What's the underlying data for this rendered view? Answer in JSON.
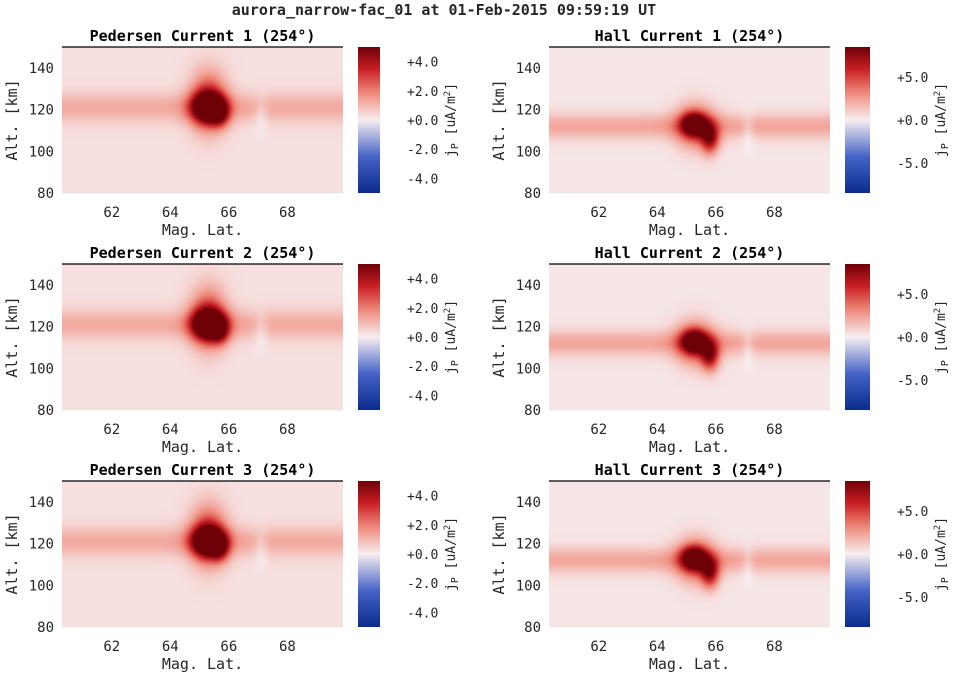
{
  "suptitle": "aurora_narrow-fac_01 at 01-Feb-2015 09:59:19 UT",
  "colors": {
    "cmap_low": "#0a2a8c",
    "cmap_mid": "#f7eef0",
    "cmap_high": "#6e0008",
    "background": "#efe3e6",
    "axis": "#262626"
  },
  "chart_data": [
    {
      "type": "heatmap",
      "title": "Pedersen Current 1 (254°)",
      "xlabel": "Mag. Lat.",
      "ylabel": "Alt. [km]",
      "xlim": [
        60.3,
        69.9
      ],
      "ylim": [
        80,
        150
      ],
      "xticks": [
        "62",
        "64",
        "66",
        "68"
      ],
      "yticks": [
        "80",
        "100",
        "120",
        "140"
      ],
      "clim": [
        -5,
        5
      ],
      "colorbar_label": "jP [uA/m²]",
      "colorbar_ticks": [
        "+4.0",
        "+2.0",
        "+0.0",
        "-2.0",
        "-4.0"
      ],
      "colorbar_values": [
        4,
        2,
        0,
        -2,
        -4
      ],
      "band": {
        "alt": 121,
        "width": 7,
        "value": 1.0
      },
      "blobs": [
        {
          "lat": 65.3,
          "alt": 124,
          "slat": 0.6,
          "salt": 14,
          "value": 3.0
        },
        {
          "lat": 65.3,
          "alt": 121,
          "slat": 0.55,
          "salt": 7,
          "value": 5.5
        },
        {
          "lat": 65.7,
          "alt": 118,
          "slat": 0.3,
          "salt": 6,
          "value": 2.5
        },
        {
          "lat": 67.1,
          "alt": 118,
          "slat": 0.22,
          "salt": 8,
          "value": -0.6
        }
      ]
    },
    {
      "type": "heatmap",
      "title": "Hall Current 1 (254°)",
      "xlabel": "Mag. Lat.",
      "ylabel": "Alt. [km]",
      "xlim": [
        60.3,
        69.9
      ],
      "ylim": [
        80,
        150
      ],
      "xticks": [
        "62",
        "64",
        "66",
        "68"
      ],
      "yticks": [
        "80",
        "100",
        "120",
        "140"
      ],
      "clim": [
        -8.5,
        8.5
      ],
      "colorbar_label": "jP [uA/m²]",
      "colorbar_ticks": [
        "+5.0",
        "+0.0",
        "-5.0"
      ],
      "colorbar_values": [
        5,
        0,
        -5
      ],
      "band": {
        "alt": 112,
        "width": 6,
        "value": 2.0
      },
      "blobs": [
        {
          "lat": 65.3,
          "alt": 112,
          "slat": 0.65,
          "salt": 10,
          "value": 5.0
        },
        {
          "lat": 65.25,
          "alt": 113,
          "slat": 0.4,
          "salt": 5,
          "value": 7.0
        },
        {
          "lat": 65.8,
          "alt": 106,
          "slat": 0.3,
          "salt": 7,
          "value": 6.0
        },
        {
          "lat": 67.1,
          "alt": 110,
          "slat": 0.2,
          "salt": 8,
          "value": -1.0
        }
      ]
    },
    {
      "type": "heatmap",
      "title": "Pedersen Current 2 (254°)",
      "xlabel": "Mag. Lat.",
      "ylabel": "Alt. [km]",
      "xlim": [
        60.3,
        69.9
      ],
      "ylim": [
        80,
        150
      ],
      "xticks": [
        "62",
        "64",
        "66",
        "68"
      ],
      "yticks": [
        "80",
        "100",
        "120",
        "140"
      ],
      "clim": [
        -5,
        5
      ],
      "colorbar_label": "jP [uA/m²]",
      "colorbar_ticks": [
        "+4.0",
        "+2.0",
        "+0.0",
        "-2.0",
        "-4.0"
      ],
      "colorbar_values": [
        4,
        2,
        0,
        -2,
        -4
      ],
      "band": {
        "alt": 121,
        "width": 7,
        "value": 1.0
      },
      "blobs": [
        {
          "lat": 65.3,
          "alt": 124,
          "slat": 0.6,
          "salt": 14,
          "value": 3.0
        },
        {
          "lat": 65.3,
          "alt": 121,
          "slat": 0.55,
          "salt": 7,
          "value": 5.5
        },
        {
          "lat": 65.7,
          "alt": 118,
          "slat": 0.3,
          "salt": 6,
          "value": 2.5
        },
        {
          "lat": 67.1,
          "alt": 118,
          "slat": 0.22,
          "salt": 8,
          "value": -0.6
        }
      ]
    },
    {
      "type": "heatmap",
      "title": "Hall Current 2 (254°)",
      "xlabel": "Mag. Lat.",
      "ylabel": "Alt. [km]",
      "xlim": [
        60.3,
        69.9
      ],
      "ylim": [
        80,
        150
      ],
      "xticks": [
        "62",
        "64",
        "66",
        "68"
      ],
      "yticks": [
        "80",
        "100",
        "120",
        "140"
      ],
      "clim": [
        -8.5,
        8.5
      ],
      "colorbar_label": "jP [uA/m²]",
      "colorbar_ticks": [
        "+5.0",
        "+0.0",
        "-5.0"
      ],
      "colorbar_values": [
        5,
        0,
        -5
      ],
      "band": {
        "alt": 112,
        "width": 6,
        "value": 2.0
      },
      "blobs": [
        {
          "lat": 65.3,
          "alt": 112,
          "slat": 0.65,
          "salt": 10,
          "value": 5.0
        },
        {
          "lat": 65.25,
          "alt": 113,
          "slat": 0.4,
          "salt": 5,
          "value": 7.0
        },
        {
          "lat": 65.8,
          "alt": 106,
          "slat": 0.3,
          "salt": 7,
          "value": 6.0
        },
        {
          "lat": 67.1,
          "alt": 110,
          "slat": 0.2,
          "salt": 8,
          "value": -1.0
        }
      ]
    },
    {
      "type": "heatmap",
      "title": "Pedersen Current 3 (254°)",
      "xlabel": "Mag. Lat.",
      "ylabel": "Alt. [km]",
      "xlim": [
        60.3,
        69.9
      ],
      "ylim": [
        80,
        150
      ],
      "xticks": [
        "62",
        "64",
        "66",
        "68"
      ],
      "yticks": [
        "80",
        "100",
        "120",
        "140"
      ],
      "clim": [
        -5,
        5
      ],
      "colorbar_label": "jP [uA/m²]",
      "colorbar_ticks": [
        "+4.0",
        "+2.0",
        "+0.0",
        "-2.0",
        "-4.0"
      ],
      "colorbar_values": [
        4,
        2,
        0,
        -2,
        -4
      ],
      "band": {
        "alt": 121,
        "width": 7,
        "value": 1.0
      },
      "blobs": [
        {
          "lat": 65.3,
          "alt": 124,
          "slat": 0.6,
          "salt": 14,
          "value": 3.0
        },
        {
          "lat": 65.3,
          "alt": 121,
          "slat": 0.55,
          "salt": 7,
          "value": 5.5
        },
        {
          "lat": 65.7,
          "alt": 118,
          "slat": 0.3,
          "salt": 6,
          "value": 2.5
        },
        {
          "lat": 67.1,
          "alt": 118,
          "slat": 0.22,
          "salt": 8,
          "value": -0.6
        }
      ]
    },
    {
      "type": "heatmap",
      "title": "Hall Current 3 (254°)",
      "xlabel": "Mag. Lat.",
      "ylabel": "Alt. [km]",
      "xlim": [
        60.3,
        69.9
      ],
      "ylim": [
        80,
        150
      ],
      "xticks": [
        "62",
        "64",
        "66",
        "68"
      ],
      "yticks": [
        "80",
        "100",
        "120",
        "140"
      ],
      "clim": [
        -8.5,
        8.5
      ],
      "colorbar_label": "jP [uA/m²]",
      "colorbar_ticks": [
        "+5.0",
        "+0.0",
        "-5.0"
      ],
      "colorbar_values": [
        5,
        0,
        -5
      ],
      "band": {
        "alt": 112,
        "width": 6,
        "value": 2.0
      },
      "blobs": [
        {
          "lat": 65.3,
          "alt": 112,
          "slat": 0.65,
          "salt": 10,
          "value": 5.0
        },
        {
          "lat": 65.25,
          "alt": 113,
          "slat": 0.4,
          "salt": 5,
          "value": 7.0
        },
        {
          "lat": 65.8,
          "alt": 106,
          "slat": 0.3,
          "salt": 7,
          "value": 6.0
        },
        {
          "lat": 67.1,
          "alt": 110,
          "slat": 0.2,
          "salt": 8,
          "value": -1.0
        }
      ]
    }
  ]
}
